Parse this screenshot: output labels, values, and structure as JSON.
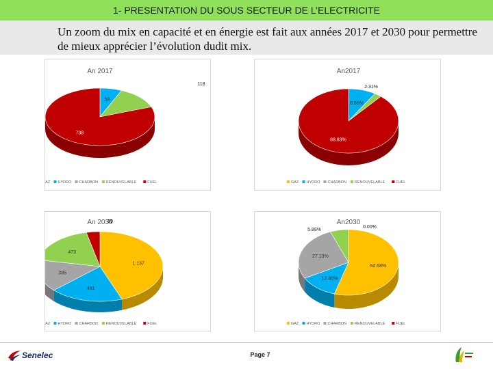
{
  "header": {
    "title": "1- PRESENTATION DU SOUS SECTEUR DE L’ELECTRICITE"
  },
  "intro": {
    "text": "Un zoom du mix en capacité et en énergie est fait aux années 2017 et 2030 pour permettre de mieux apprécier l’évolution dudit mix."
  },
  "footer": {
    "page": "Page 7",
    "brand": "Senelec"
  },
  "colors": {
    "GAZ": "#ffc000",
    "HYDRO": "#00b0f0",
    "CHARBON": "#a5a5a5",
    "RENOUVELABLE": "#92d050",
    "FUEL": "#c00000"
  },
  "chart_data": [
    {
      "type": "pie",
      "title": "An 2017",
      "categories": [
        "GAZ",
        "HYDRO",
        "CHARBON",
        "RENOUVELABLE",
        "FUEL"
      ],
      "values": [
        0,
        59,
        0,
        118,
        738
      ],
      "labels": [
        "",
        "59",
        "",
        "118",
        "738"
      ],
      "legend": "bottom"
    },
    {
      "type": "pie",
      "title": "An2017",
      "categories": [
        "GAZ",
        "HYDRO",
        "CHARBON",
        "RENOUVELABLE",
        "FUEL"
      ],
      "values": [
        0,
        8.86,
        0,
        2.31,
        88.83
      ],
      "labels": [
        "",
        "8.86%",
        "",
        "2.31%",
        "88.83%"
      ],
      "legend": "bottom"
    },
    {
      "type": "pie",
      "title": "An 2030",
      "categories": [
        "GAZ",
        "HYDRO",
        "CHARBON",
        "RENOUVELABLE",
        "FUEL"
      ],
      "values": [
        1137,
        481,
        385,
        473,
        89
      ],
      "labels": [
        "1 137",
        "481",
        "385",
        "473",
        "89"
      ],
      "legend": "bottom"
    },
    {
      "type": "pie",
      "title": "An2030",
      "categories": [
        "GAZ",
        "HYDRO",
        "CHARBON",
        "RENOUVELABLE",
        "FUEL"
      ],
      "values": [
        54.58,
        12.4,
        27.13,
        5.89,
        0.0
      ],
      "labels": [
        "54.58%",
        "12.40%",
        "27.13%",
        "5.89%",
        "0.00%"
      ],
      "legend": "bottom"
    }
  ]
}
